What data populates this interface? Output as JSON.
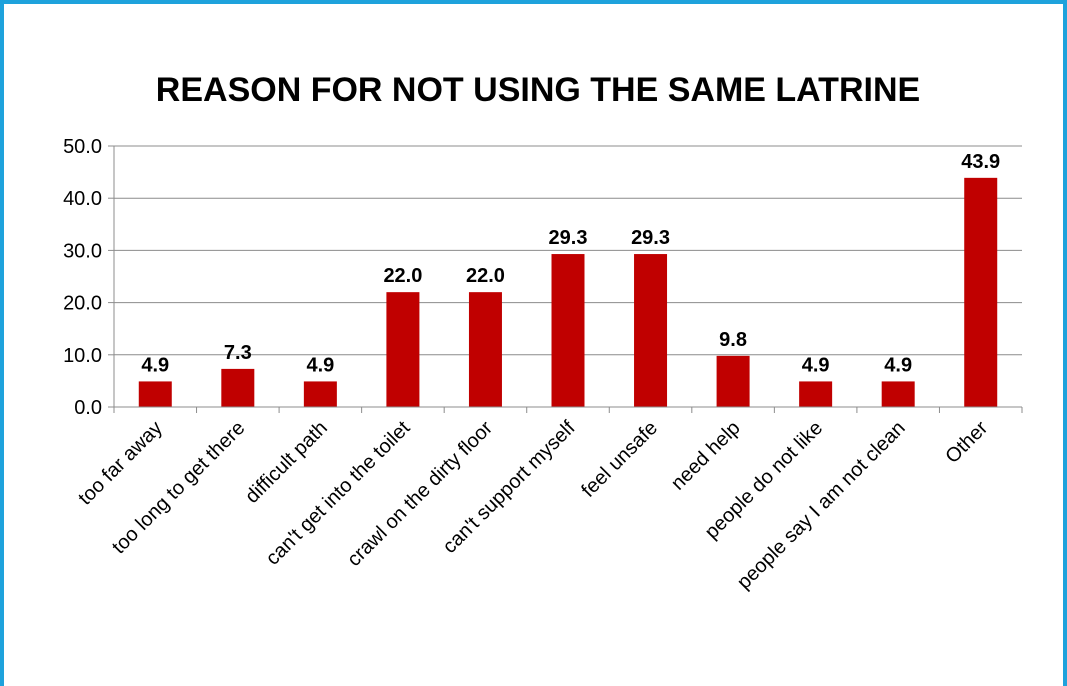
{
  "chart_data": {
    "type": "bar",
    "title": "REASON FOR NOT USING THE SAME LATRINE",
    "xlabel": "",
    "ylabel": "",
    "ylim": [
      0,
      50
    ],
    "yticks": [
      "0.0",
      "10.0",
      "20.0",
      "30.0",
      "40.0",
      "50.0"
    ],
    "grid": true,
    "legend": "none",
    "bar_color": "#c00000",
    "categories": [
      "too far away",
      "too long to get there",
      "difficult path",
      "can't get into the toilet",
      "crawl on the dirty floor",
      "can't support myself",
      "feel unsafe",
      "need help",
      "people do not like",
      "people say I am not clean",
      "Other"
    ],
    "values": [
      4.9,
      7.3,
      4.9,
      22.0,
      22.0,
      29.3,
      29.3,
      9.8,
      4.9,
      4.9,
      43.9
    ],
    "data_labels": [
      "4.9",
      "7.3",
      "4.9",
      "22.0",
      "22.0",
      "29.3",
      "29.3",
      "9.8",
      "4.9",
      "4.9",
      "43.9"
    ]
  },
  "colors": {
    "frame_border": "#1ea2dc",
    "gridline": "#8c8c8c",
    "axis": "#8c8c8c"
  }
}
